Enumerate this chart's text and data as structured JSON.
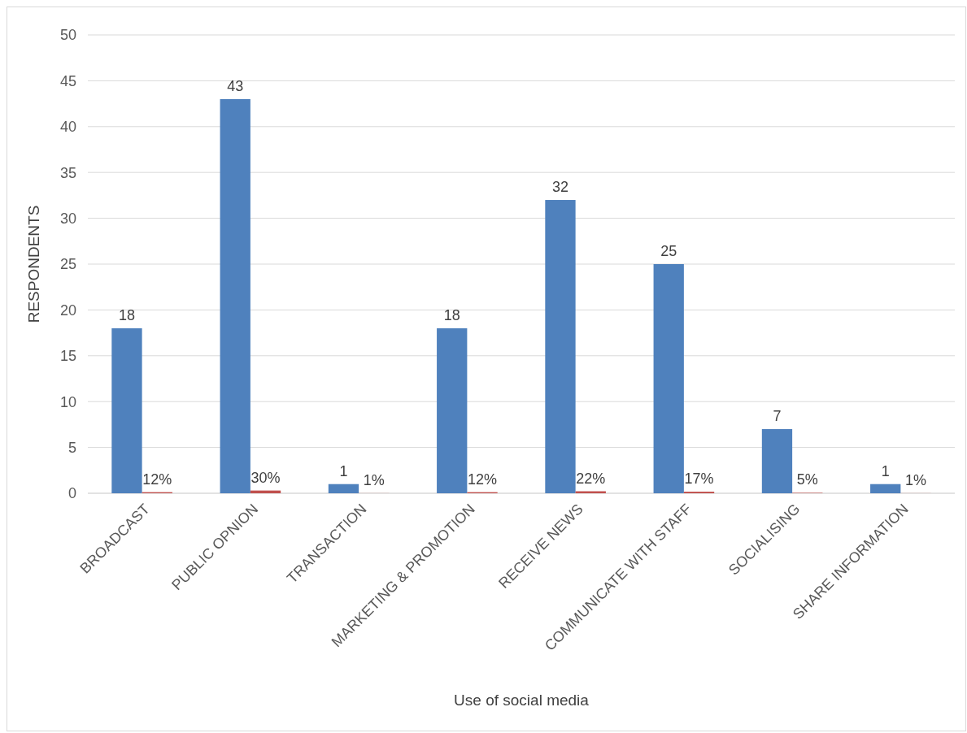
{
  "chart_data": {
    "type": "bar",
    "xlabel": "Use of social media",
    "ylabel": "RESPONDENTS",
    "categories": [
      "BROADCAST",
      "PUBLIC OPNION",
      "TRANSACTION",
      "MARKETING & PROMOTION",
      "RECEIVE NEWS",
      "COMMUNICATE WITH STAFF",
      "SOCIALISING",
      "SHARE INFORMATION"
    ],
    "series": [
      {
        "color": "#4f81bd",
        "values": [
          18,
          43,
          1,
          18,
          32,
          25,
          7,
          1
        ],
        "value_labels": [
          "18",
          "43",
          "1",
          "18",
          "32",
          "25",
          "7",
          "1"
        ]
      },
      {
        "color": "#c0504d",
        "values": [
          0.12,
          0.3,
          0.01,
          0.12,
          0.22,
          0.17,
          0.05,
          0.01
        ],
        "value_labels": [
          "12%",
          "30%",
          "1%",
          "12%",
          "22%",
          "17%",
          "5%",
          "1%"
        ]
      }
    ],
    "ylim": [
      0,
      50
    ],
    "yticks": [
      0,
      5,
      10,
      15,
      20,
      25,
      30,
      35,
      40,
      45,
      50
    ],
    "grid": "y"
  }
}
